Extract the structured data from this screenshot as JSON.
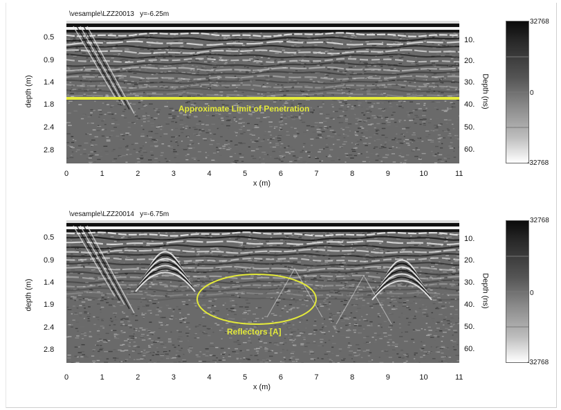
{
  "panels": [
    {
      "title": "\\vesample\\LZZ20013   y=-6.25m",
      "depth_m_ticks": [
        "0.5",
        "0.9",
        "1.4",
        "1.8",
        "2.4",
        "2.8"
      ],
      "depth_ns_ticks": [
        "10.",
        "20.",
        "30.",
        "40.",
        "50.",
        "60."
      ],
      "x_ticks": [
        "0",
        "1",
        "2",
        "3",
        "4",
        "5",
        "6",
        "7",
        "8",
        "9",
        "10",
        "11"
      ],
      "x_label": "x (m)",
      "y_label_left": "depth (m)",
      "y_label_right": "Depth (ns)",
      "annotation": "Approximate Limit of Penetration",
      "annotation_type": "horizontal-line",
      "colorbar": {
        "max": "32768",
        "mid": "0",
        "min": "-32768"
      }
    },
    {
      "title": "\\vesample\\LZZ20014   y=-6.75m",
      "depth_m_ticks": [
        "0.5",
        "0.9",
        "1.4",
        "1.9",
        "2.4",
        "2.8"
      ],
      "depth_ns_ticks": [
        "10.",
        "20.",
        "30.",
        "40.",
        "50.",
        "60."
      ],
      "x_ticks": [
        "0",
        "1",
        "2",
        "3",
        "4",
        "5",
        "6",
        "7",
        "8",
        "9",
        "10",
        "11"
      ],
      "x_label": "x (m)",
      "y_label_left": "depth (m)",
      "y_label_right": "Depth (ns)",
      "annotation": "Reflectors [A]",
      "annotation_type": "ellipse",
      "colorbar": {
        "max": "32768",
        "mid": "0",
        "min": "-32768"
      }
    }
  ],
  "colors": {
    "annotation": "#e4ea3a",
    "background": "#6a6a6a"
  }
}
